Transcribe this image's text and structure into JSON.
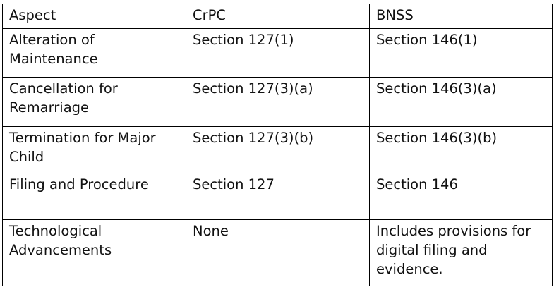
{
  "table": {
    "headers": [
      "Aspect",
      "CrPC",
      "BNSS"
    ],
    "rows": [
      [
        "Alteration of Maintenance",
        "Section 127(1)",
        "Section 146(1)"
      ],
      [
        "Cancellation for Remarriage",
        "Section 127(3)(a)",
        "Section 146(3)(a)"
      ],
      [
        "Termination for Major Child",
        "Section 127(3)(b)",
        "Section 146(3)(b)"
      ],
      [
        "Filing and Procedure",
        "Section 127",
        "Section 146"
      ],
      [
        "Technological Advancements",
        "None",
        "Includes provisions for digital filing and evidence."
      ]
    ]
  }
}
